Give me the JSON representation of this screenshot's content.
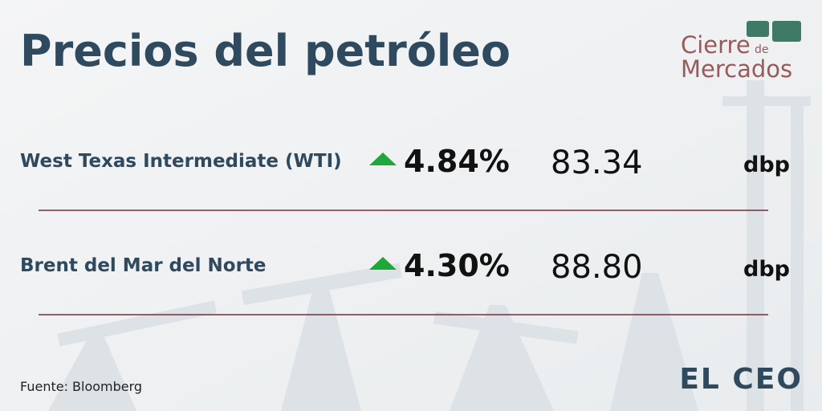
{
  "header": {
    "title": "Precios del petróleo"
  },
  "logo": {
    "line1": "Cierre",
    "small": "de",
    "line2": "Mercados"
  },
  "table": {
    "rows": [
      [
        "West Texas Intermediate (WTI)",
        "4.84%",
        "83.34",
        "dbp"
      ],
      [
        "Brent del Mar del Norte",
        "4.30%",
        "88.80",
        "dbp"
      ]
    ]
  },
  "footer": {
    "source": "Fuente: Bloomberg",
    "brand": "EL CEO"
  }
}
